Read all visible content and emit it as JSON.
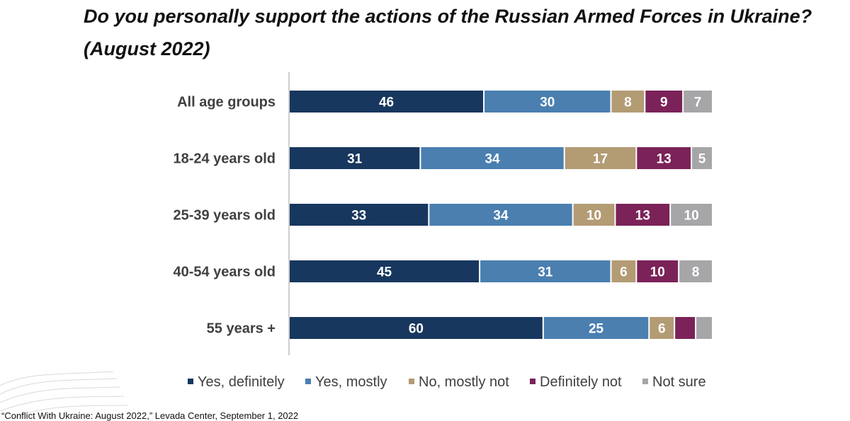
{
  "title_line1": "Do you personally support the actions of the Russian Armed Forces in Ukraine?",
  "title_line2": "(August 2022)",
  "source": "“Conflict With Ukraine: August 2022,” Levada Center, September 1, 2022",
  "chart_data": {
    "type": "bar",
    "orientation": "horizontal",
    "stacked": true,
    "title": "Do you personally support the actions of the Russian Armed Forces in Ukraine? (August 2022)",
    "xlabel": "",
    "ylabel": "",
    "xlim": [
      0,
      100
    ],
    "grid": false,
    "legend_position": "bottom",
    "categories": [
      "All age groups",
      "18-24 years old",
      "25-39 years old",
      "40-54 years old",
      "55 years +"
    ],
    "series": [
      {
        "name": "Yes, definitely",
        "color": "#17375e",
        "values": [
          46,
          31,
          33,
          45,
          60
        ],
        "labels": [
          "46",
          "31",
          "33",
          "45",
          "60"
        ]
      },
      {
        "name": "Yes, mostly",
        "color": "#4a7fb0",
        "values": [
          30,
          34,
          34,
          31,
          25
        ],
        "labels": [
          "30",
          "34",
          "34",
          "31",
          "25"
        ]
      },
      {
        "name": "No, mostly not",
        "color": "#b39b74",
        "values": [
          8,
          17,
          10,
          6,
          6
        ],
        "labels": [
          "8",
          "17",
          "10",
          "6",
          "6"
        ]
      },
      {
        "name": "Definitely not",
        "color": "#7b2259",
        "values": [
          9,
          13,
          13,
          10,
          5
        ],
        "labels": [
          "9",
          "13",
          "13",
          "10",
          ""
        ]
      },
      {
        "name": "Not sure",
        "color": "#a6a6a8",
        "values": [
          7,
          5,
          10,
          8,
          4
        ],
        "labels": [
          "7",
          "5",
          "10",
          "8",
          ""
        ]
      }
    ]
  }
}
